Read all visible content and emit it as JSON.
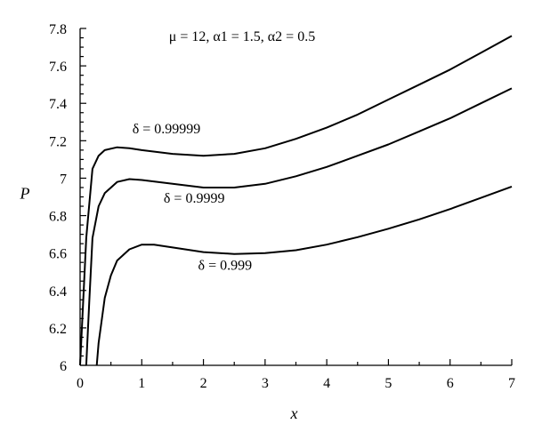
{
  "chart_data": {
    "type": "line",
    "title": "μ = 12, α1 = 1.5, α2 = 0.5",
    "xlabel": "x",
    "ylabel": "P",
    "xlim": [
      0,
      7
    ],
    "ylim": [
      6,
      7.8
    ],
    "xticks": [
      "0",
      "1",
      "2",
      "3",
      "4",
      "5",
      "6",
      "7"
    ],
    "yticks": [
      "6",
      "6.2",
      "6.4",
      "6.6",
      "6.8",
      "7",
      "7.2",
      "7.4",
      "7.6",
      "7.8"
    ],
    "grid": false,
    "series": [
      {
        "name": "δ = 0.99999",
        "x": [
          0.0,
          0.1,
          0.2,
          0.3,
          0.4,
          0.6,
          0.8,
          1.0,
          1.5,
          2.0,
          2.5,
          3.0,
          3.5,
          4.0,
          4.5,
          5.0,
          5.5,
          6.0,
          6.5,
          7.0
        ],
        "y": [
          6.0,
          6.68,
          7.05,
          7.12,
          7.15,
          7.165,
          7.16,
          7.15,
          7.13,
          7.12,
          7.13,
          7.16,
          7.21,
          7.27,
          7.34,
          7.42,
          7.5,
          7.58,
          7.67,
          7.76
        ]
      },
      {
        "name": "δ = 0.9999",
        "x": [
          0.1,
          0.15,
          0.2,
          0.3,
          0.4,
          0.6,
          0.8,
          1.0,
          1.5,
          2.0,
          2.5,
          3.0,
          3.5,
          4.0,
          4.5,
          5.0,
          5.5,
          6.0,
          6.5,
          7.0
        ],
        "y": [
          6.0,
          6.35,
          6.68,
          6.85,
          6.92,
          6.98,
          6.995,
          6.99,
          6.97,
          6.95,
          6.95,
          6.97,
          7.01,
          7.06,
          7.12,
          7.18,
          7.25,
          7.32,
          7.4,
          7.48
        ]
      },
      {
        "name": "δ = 0.999",
        "x": [
          0.27,
          0.3,
          0.4,
          0.5,
          0.6,
          0.8,
          1.0,
          1.2,
          1.5,
          2.0,
          2.5,
          3.0,
          3.5,
          4.0,
          4.5,
          5.0,
          5.5,
          6.0,
          6.5,
          7.0
        ],
        "y": [
          6.0,
          6.12,
          6.36,
          6.48,
          6.56,
          6.62,
          6.645,
          6.645,
          6.63,
          6.605,
          6.595,
          6.6,
          6.615,
          6.645,
          6.685,
          6.73,
          6.78,
          6.835,
          6.895,
          6.955
        ]
      }
    ],
    "annotations": [
      {
        "text": "δ = 0.99999",
        "x": 1.4,
        "y": 7.24
      },
      {
        "text": "δ = 0.9999",
        "x": 1.85,
        "y": 6.87
      },
      {
        "text": "δ = 0.999",
        "x": 2.35,
        "y": 6.51
      }
    ]
  }
}
